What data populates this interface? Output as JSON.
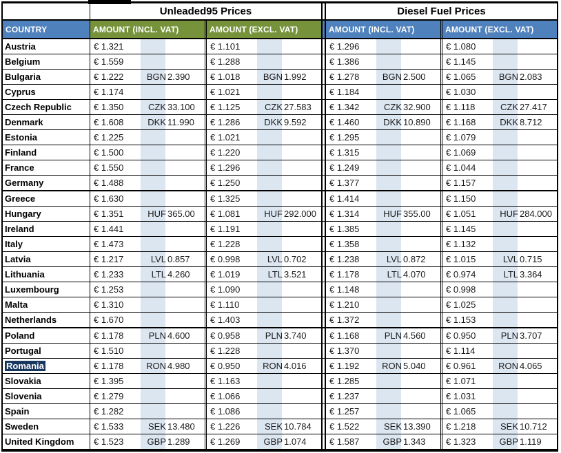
{
  "titles": {
    "unleaded": "Unleaded95 Prices",
    "diesel": "Diesel Fuel Prices"
  },
  "headers": {
    "country": "COUNTRY",
    "amount_incl": "AMOUNT (INCL. VAT)",
    "amount_excl": "AMOUNT (EXCL. VAT)"
  },
  "colors": {
    "header_blue": "#4F81BD",
    "header_green": "#76933C",
    "stripe_blue": "#DCE6F1",
    "selection_navy": "#17375E",
    "border_black": "#000000"
  },
  "selected_country": "Romania",
  "rows": [
    {
      "country": "Austria",
      "cells": [
        {
          "eur": "€ 1.321"
        },
        {
          "eur": "€ 1.101"
        },
        {
          "eur": "€ 1.296"
        },
        {
          "eur": "€ 1.080"
        }
      ]
    },
    {
      "country": "Belgium",
      "cells": [
        {
          "eur": "€ 1.559"
        },
        {
          "eur": "€ 1.288"
        },
        {
          "eur": "€ 1.386"
        },
        {
          "eur": "€ 1.145"
        }
      ]
    },
    {
      "country": "Bulgaria",
      "cells": [
        {
          "eur": "€ 1.222",
          "code": "BGN",
          "local": "2.390"
        },
        {
          "eur": "€ 1.018",
          "code": "BGN",
          "local": "1.992"
        },
        {
          "eur": "€ 1.278",
          "code": "BGN",
          "local": "2.500"
        },
        {
          "eur": "€ 1.065",
          "code": "BGN",
          "local": "2.083"
        }
      ]
    },
    {
      "country": "Cyprus",
      "cells": [
        {
          "eur": "€ 1.174"
        },
        {
          "eur": "€ 1.021"
        },
        {
          "eur": "€ 1.184"
        },
        {
          "eur": "€ 1.030"
        }
      ]
    },
    {
      "country": "Czech Republic",
      "cells": [
        {
          "eur": "€ 1.350",
          "code": "CZK",
          "local": "33.100"
        },
        {
          "eur": "€ 1.125",
          "code": "CZK",
          "local": "27.583"
        },
        {
          "eur": "€ 1.342",
          "code": "CZK",
          "local": "32.900"
        },
        {
          "eur": "€ 1.118",
          "code": "CZK",
          "local": "27.417"
        }
      ]
    },
    {
      "country": "Denmark",
      "cells": [
        {
          "eur": "€ 1.608",
          "code": "DKK",
          "local": "11.990"
        },
        {
          "eur": "€ 1.286",
          "code": "DKK",
          "local": "9.592"
        },
        {
          "eur": "€ 1.460",
          "code": "DKK",
          "local": "10.890"
        },
        {
          "eur": "€ 1.168",
          "code": "DKK",
          "local": "8.712"
        }
      ]
    },
    {
      "country": "Estonia",
      "cells": [
        {
          "eur": "€ 1.225"
        },
        {
          "eur": "€ 1.021"
        },
        {
          "eur": "€ 1.295"
        },
        {
          "eur": "€ 1.079"
        }
      ]
    },
    {
      "country": "Finland",
      "cells": [
        {
          "eur": "€ 1.500"
        },
        {
          "eur": "€ 1.220"
        },
        {
          "eur": "€ 1.315"
        },
        {
          "eur": "€ 1.069"
        }
      ]
    },
    {
      "country": "France",
      "cells": [
        {
          "eur": "€ 1.550"
        },
        {
          "eur": "€ 1.296"
        },
        {
          "eur": "€ 1.249"
        },
        {
          "eur": "€ 1.044"
        }
      ]
    },
    {
      "country": "Germany",
      "thick_below": true,
      "cells": [
        {
          "eur": "€ 1.488"
        },
        {
          "eur": "€ 1.250"
        },
        {
          "eur": "€ 1.377"
        },
        {
          "eur": "€ 1.157"
        }
      ]
    },
    {
      "country": "Greece",
      "cells": [
        {
          "eur": "€ 1.630"
        },
        {
          "eur": "€ 1.325"
        },
        {
          "eur": "€ 1.414"
        },
        {
          "eur": "€ 1.150"
        }
      ]
    },
    {
      "country": "Hungary",
      "cells": [
        {
          "eur": "€ 1.351",
          "code": "HUF",
          "local": "365.00"
        },
        {
          "eur": "€ 1.081",
          "code": "HUF",
          "local": "292.000"
        },
        {
          "eur": "€ 1.314",
          "code": "HUF",
          "local": "355.00"
        },
        {
          "eur": "€ 1.051",
          "code": "HUF",
          "local": "284.000"
        }
      ]
    },
    {
      "country": "Ireland",
      "cells": [
        {
          "eur": "€ 1.441"
        },
        {
          "eur": "€ 1.191"
        },
        {
          "eur": "€ 1.385"
        },
        {
          "eur": "€ 1.145"
        }
      ]
    },
    {
      "country": "Italy",
      "cells": [
        {
          "eur": "€ 1.473"
        },
        {
          "eur": "€ 1.228"
        },
        {
          "eur": "€ 1.358"
        },
        {
          "eur": "€ 1.132"
        }
      ]
    },
    {
      "country": "Latvia",
      "cells": [
        {
          "eur": "€ 1.217",
          "code": "LVL",
          "local": "0.857"
        },
        {
          "eur": "€ 0.998",
          "code": "LVL",
          "local": "0.702"
        },
        {
          "eur": "€ 1.238",
          "code": "LVL",
          "local": "0.872"
        },
        {
          "eur": "€ 1.015",
          "code": "LVL",
          "local": "0.715"
        }
      ]
    },
    {
      "country": "Lithuania",
      "cells": [
        {
          "eur": "€ 1.233",
          "code": "LTL",
          "local": "4.260"
        },
        {
          "eur": "€ 1.019",
          "code": "LTL",
          "local": "3.521"
        },
        {
          "eur": "€ 1.178",
          "code": "LTL",
          "local": "4.070"
        },
        {
          "eur": "€ 0.974",
          "code": "LTL",
          "local": "3.364"
        }
      ]
    },
    {
      "country": "Luxembourg",
      "cells": [
        {
          "eur": "€ 1.253"
        },
        {
          "eur": "€ 1.090"
        },
        {
          "eur": "€ 1.148"
        },
        {
          "eur": "€ 0.998"
        }
      ]
    },
    {
      "country": "Malta",
      "cells": [
        {
          "eur": "€ 1.310"
        },
        {
          "eur": "€ 1.110"
        },
        {
          "eur": "€ 1.210"
        },
        {
          "eur": "€ 1.025"
        }
      ]
    },
    {
      "country": "Netherlands",
      "thick_below": true,
      "cells": [
        {
          "eur": "€ 1.670"
        },
        {
          "eur": "€ 1.403"
        },
        {
          "eur": "€ 1.372"
        },
        {
          "eur": "€ 1.153"
        }
      ]
    },
    {
      "country": "Poland",
      "cells": [
        {
          "eur": "€ 1.178",
          "code": "PLN",
          "local": "4.600"
        },
        {
          "eur": "€ 0.958",
          "code": "PLN",
          "local": "3.740"
        },
        {
          "eur": "€ 1.168",
          "code": "PLN",
          "local": "4.560"
        },
        {
          "eur": "€ 0.950",
          "code": "PLN",
          "local": "3.707"
        }
      ]
    },
    {
      "country": "Portugal",
      "cells": [
        {
          "eur": "€ 1.510"
        },
        {
          "eur": "€ 1.228"
        },
        {
          "eur": "€ 1.370"
        },
        {
          "eur": "€ 1.114"
        }
      ]
    },
    {
      "country": "Romania",
      "highlighted": true,
      "cells": [
        {
          "eur": "€ 1.178",
          "code": "RON",
          "local": "4.980"
        },
        {
          "eur": "€ 0.950",
          "code": "RON",
          "local": "4.016"
        },
        {
          "eur": "€ 1.192",
          "code": "RON",
          "local": "5.040"
        },
        {
          "eur": "€ 0.961",
          "code": "RON",
          "local": "4.065"
        }
      ]
    },
    {
      "country": "Slovakia",
      "cells": [
        {
          "eur": "€ 1.395"
        },
        {
          "eur": "€ 1.163"
        },
        {
          "eur": "€ 1.285"
        },
        {
          "eur": "€ 1.071"
        }
      ]
    },
    {
      "country": "Slovenia",
      "cells": [
        {
          "eur": "€ 1.279"
        },
        {
          "eur": "€ 1.066"
        },
        {
          "eur": "€ 1.237"
        },
        {
          "eur": "€ 1.031"
        }
      ]
    },
    {
      "country": "Spain",
      "cells": [
        {
          "eur": "€ 1.282"
        },
        {
          "eur": "€ 1.086"
        },
        {
          "eur": "€ 1.257"
        },
        {
          "eur": "€ 1.065"
        }
      ]
    },
    {
      "country": "Sweden",
      "cells": [
        {
          "eur": "€ 1.533",
          "code": "SEK",
          "local": "13.480"
        },
        {
          "eur": "€ 1.226",
          "code": "SEK",
          "local": "10.784"
        },
        {
          "eur": "€ 1.522",
          "code": "SEK",
          "local": "13.390"
        },
        {
          "eur": "€ 1.218",
          "code": "SEK",
          "local": "10.712"
        }
      ]
    },
    {
      "country": "United Kingdom",
      "cells": [
        {
          "eur": "€ 1.523",
          "code": "GBP",
          "local": "1.289"
        },
        {
          "eur": "€ 1.269",
          "code": "GBP",
          "local": "1.074"
        },
        {
          "eur": "€ 1.587",
          "code": "GBP",
          "local": "1.343"
        },
        {
          "eur": "€ 1.323",
          "code": "GBP",
          "local": "1.119"
        }
      ]
    }
  ]
}
